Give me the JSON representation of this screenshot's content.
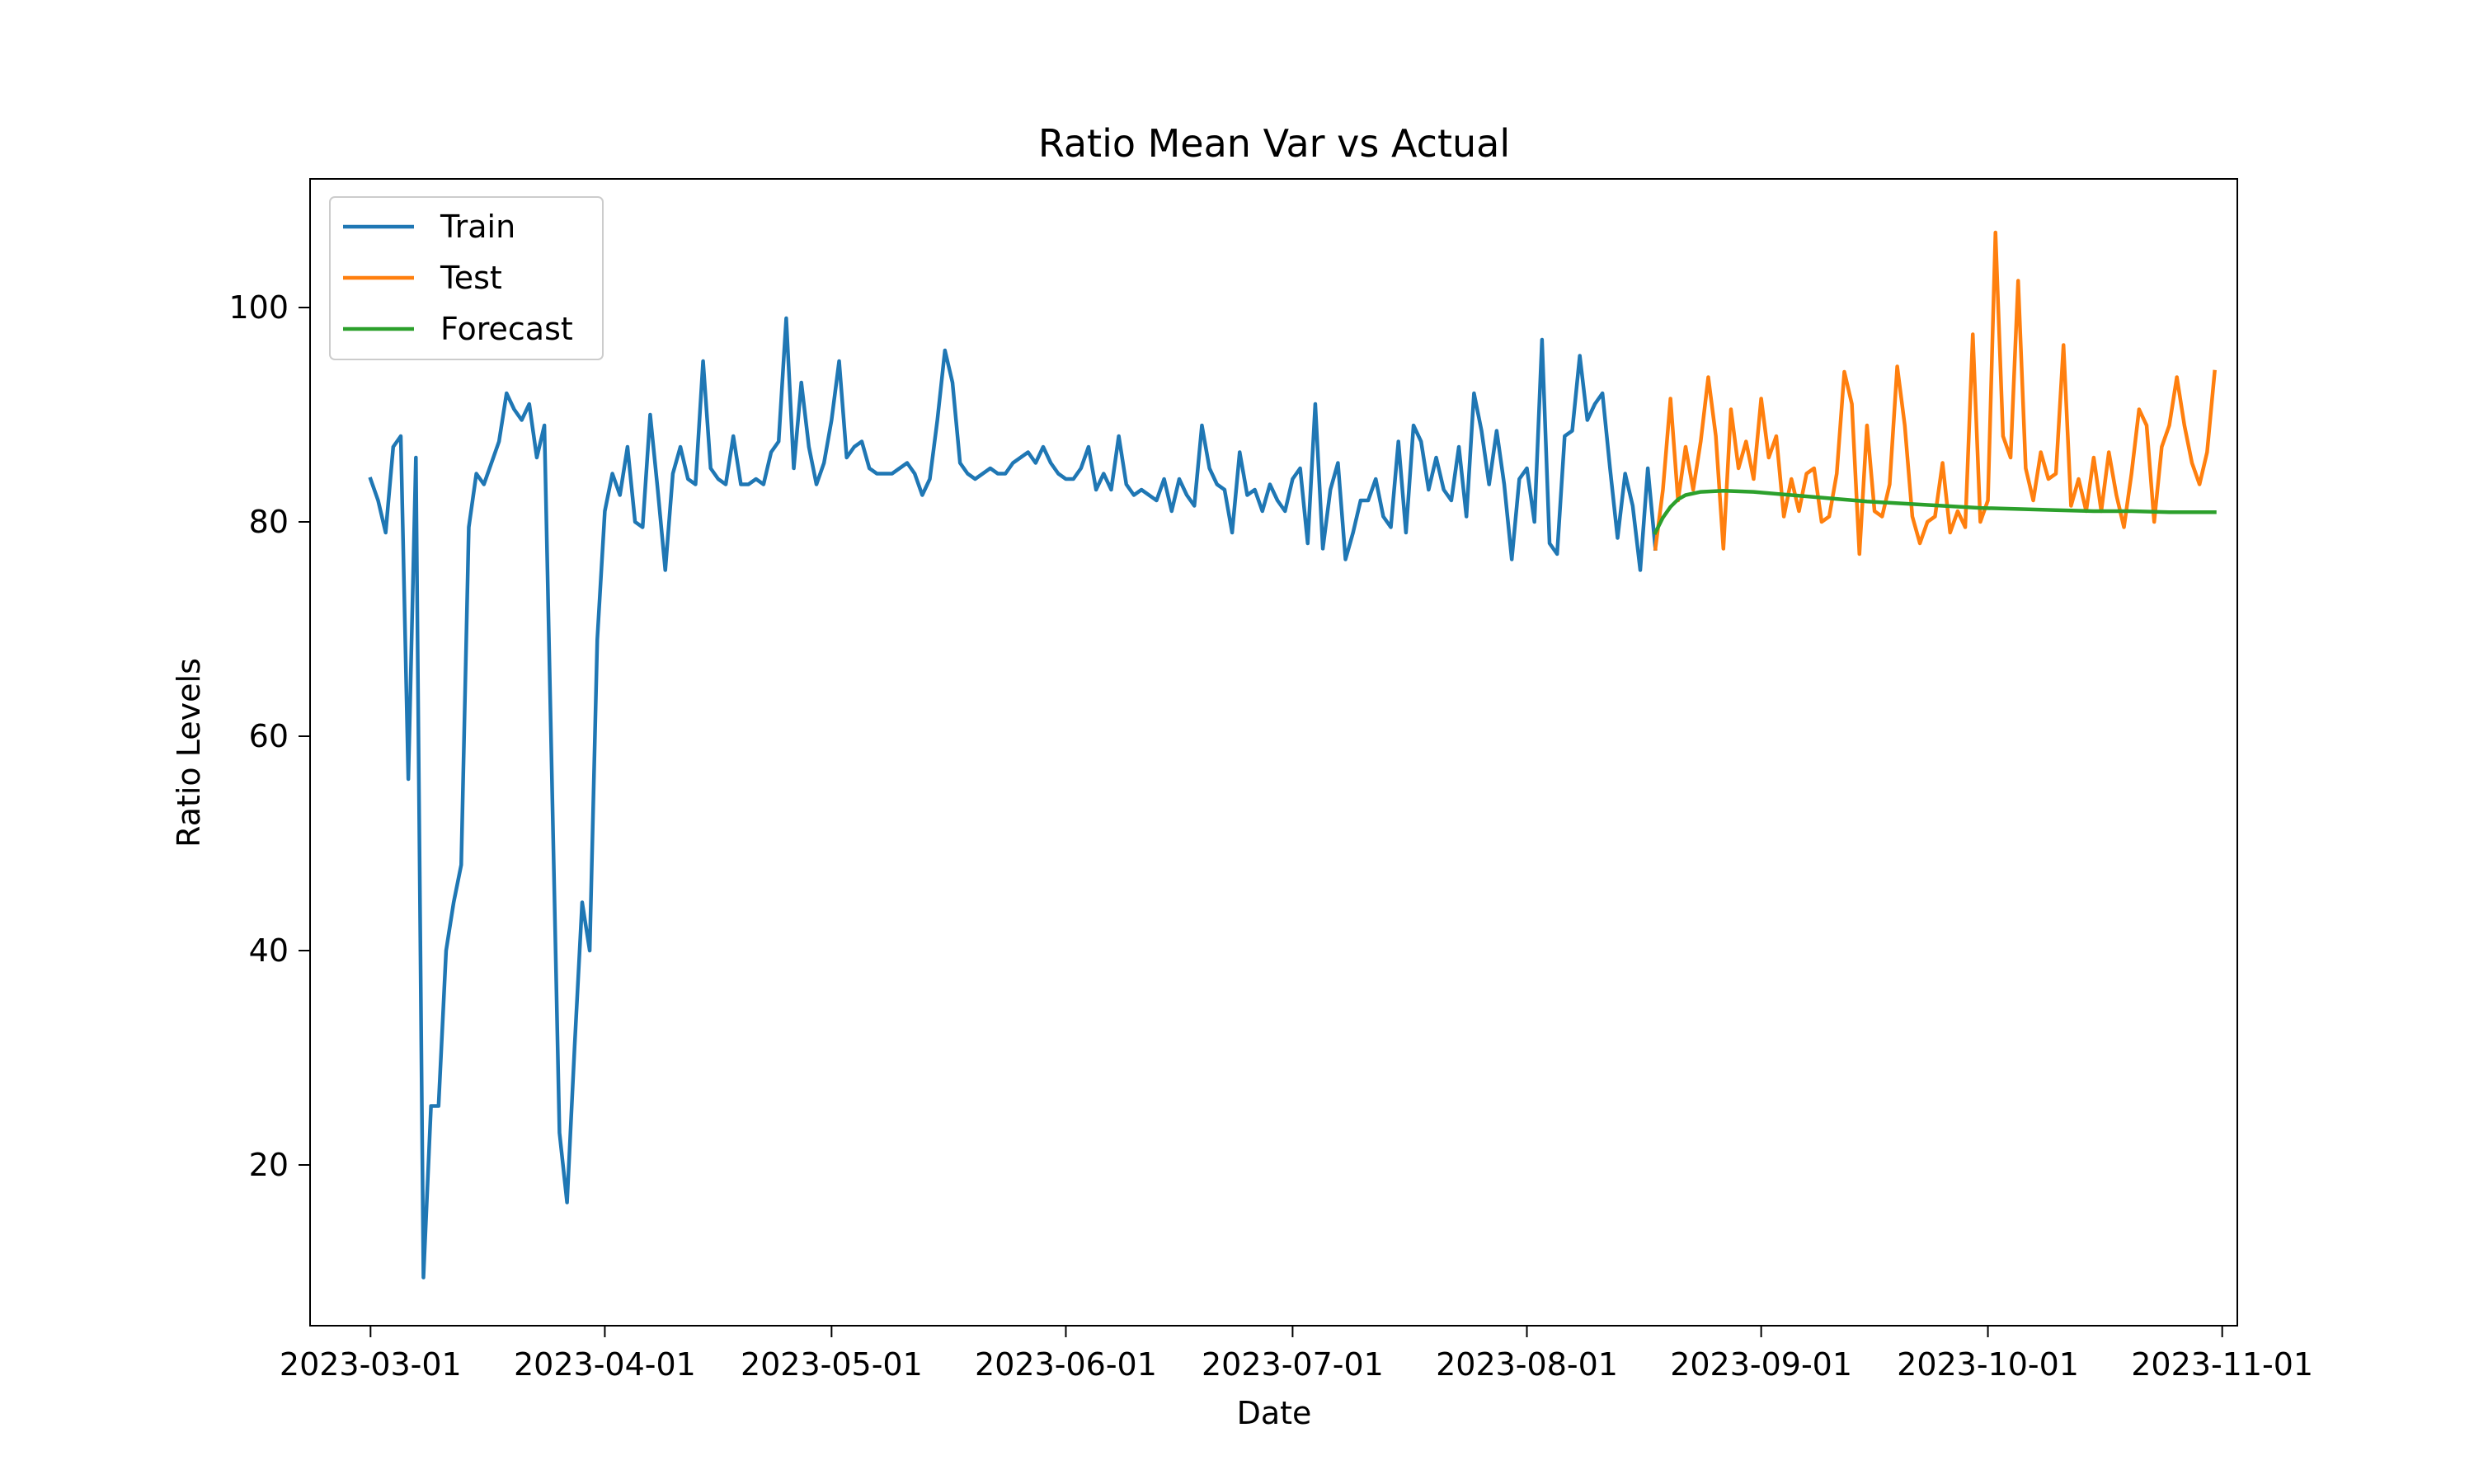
{
  "chart_data": {
    "type": "line",
    "title": "Ratio Mean Var vs Actual",
    "xlabel": "Date",
    "ylabel": "Ratio Levels",
    "x_axis_type": "date",
    "xlim": [
      "2023-02-21",
      "2023-11-03"
    ],
    "ylim": [
      5,
      112
    ],
    "x_ticks": [
      "2023-03-01",
      "2023-04-01",
      "2023-05-01",
      "2023-06-01",
      "2023-07-01",
      "2023-08-01",
      "2023-09-01",
      "2023-10-01",
      "2023-11-01"
    ],
    "y_ticks": [
      20,
      40,
      60,
      80,
      100
    ],
    "grid": false,
    "legend_position": "upper-left",
    "series": [
      {
        "name": "Train",
        "color": "#1f77b4",
        "points": [
          [
            "2023-03-01",
            84.0
          ],
          [
            "2023-03-02",
            82.0
          ],
          [
            "2023-03-03",
            79.0
          ],
          [
            "2023-03-04",
            87.0
          ],
          [
            "2023-03-05",
            88.0
          ],
          [
            "2023-03-06",
            56.0
          ],
          [
            "2023-03-07",
            86.0
          ],
          [
            "2023-03-08",
            9.5
          ],
          [
            "2023-03-09",
            25.5
          ],
          [
            "2023-03-10",
            25.5
          ],
          [
            "2023-03-11",
            40.0
          ],
          [
            "2023-03-12",
            44.5
          ],
          [
            "2023-03-13",
            48.0
          ],
          [
            "2023-03-14",
            79.5
          ],
          [
            "2023-03-15",
            84.5
          ],
          [
            "2023-03-16",
            83.5
          ],
          [
            "2023-03-17",
            85.5
          ],
          [
            "2023-03-18",
            87.5
          ],
          [
            "2023-03-19",
            92.0
          ],
          [
            "2023-03-20",
            90.5
          ],
          [
            "2023-03-21",
            89.5
          ],
          [
            "2023-03-22",
            91.0
          ],
          [
            "2023-03-23",
            86.0
          ],
          [
            "2023-03-24",
            89.0
          ],
          [
            "2023-03-25",
            56.0
          ],
          [
            "2023-03-26",
            23.0
          ],
          [
            "2023-03-27",
            16.5
          ],
          [
            "2023-03-28",
            31.0
          ],
          [
            "2023-03-29",
            44.5
          ],
          [
            "2023-03-30",
            40.0
          ],
          [
            "2023-03-31",
            69.0
          ],
          [
            "2023-04-01",
            81.0
          ],
          [
            "2023-04-02",
            84.5
          ],
          [
            "2023-04-03",
            82.5
          ],
          [
            "2023-04-04",
            87.0
          ],
          [
            "2023-04-05",
            80.0
          ],
          [
            "2023-04-06",
            79.5
          ],
          [
            "2023-04-07",
            90.0
          ],
          [
            "2023-04-08",
            83.0
          ],
          [
            "2023-04-09",
            75.5
          ],
          [
            "2023-04-10",
            84.5
          ],
          [
            "2023-04-11",
            87.0
          ],
          [
            "2023-04-12",
            84.0
          ],
          [
            "2023-04-13",
            83.5
          ],
          [
            "2023-04-14",
            95.0
          ],
          [
            "2023-04-15",
            85.0
          ],
          [
            "2023-04-16",
            84.0
          ],
          [
            "2023-04-17",
            83.5
          ],
          [
            "2023-04-18",
            88.0
          ],
          [
            "2023-04-19",
            83.5
          ],
          [
            "2023-04-20",
            83.5
          ],
          [
            "2023-04-21",
            84.0
          ],
          [
            "2023-04-22",
            83.5
          ],
          [
            "2023-04-23",
            86.5
          ],
          [
            "2023-04-24",
            87.5
          ],
          [
            "2023-04-25",
            99.0
          ],
          [
            "2023-04-26",
            85.0
          ],
          [
            "2023-04-27",
            93.0
          ],
          [
            "2023-04-28",
            87.0
          ],
          [
            "2023-04-29",
            83.5
          ],
          [
            "2023-04-30",
            85.5
          ],
          [
            "2023-05-01",
            89.5
          ],
          [
            "2023-05-02",
            95.0
          ],
          [
            "2023-05-03",
            86.0
          ],
          [
            "2023-05-04",
            87.0
          ],
          [
            "2023-05-05",
            87.5
          ],
          [
            "2023-05-06",
            85.0
          ],
          [
            "2023-05-07",
            84.5
          ],
          [
            "2023-05-08",
            84.5
          ],
          [
            "2023-05-09",
            84.5
          ],
          [
            "2023-05-10",
            85.0
          ],
          [
            "2023-05-11",
            85.5
          ],
          [
            "2023-05-12",
            84.5
          ],
          [
            "2023-05-13",
            82.5
          ],
          [
            "2023-05-14",
            84.0
          ],
          [
            "2023-05-15",
            89.5
          ],
          [
            "2023-05-16",
            96.0
          ],
          [
            "2023-05-17",
            93.0
          ],
          [
            "2023-05-18",
            85.5
          ],
          [
            "2023-05-19",
            84.5
          ],
          [
            "2023-05-20",
            84.0
          ],
          [
            "2023-05-21",
            84.5
          ],
          [
            "2023-05-22",
            85.0
          ],
          [
            "2023-05-23",
            84.5
          ],
          [
            "2023-05-24",
            84.5
          ],
          [
            "2023-05-25",
            85.5
          ],
          [
            "2023-05-26",
            86.0
          ],
          [
            "2023-05-27",
            86.5
          ],
          [
            "2023-05-28",
            85.5
          ],
          [
            "2023-05-29",
            87.0
          ],
          [
            "2023-05-30",
            85.5
          ],
          [
            "2023-05-31",
            84.5
          ],
          [
            "2023-06-01",
            84.0
          ],
          [
            "2023-06-02",
            84.0
          ],
          [
            "2023-06-03",
            85.0
          ],
          [
            "2023-06-04",
            87.0
          ],
          [
            "2023-06-05",
            83.0
          ],
          [
            "2023-06-06",
            84.5
          ],
          [
            "2023-06-07",
            83.0
          ],
          [
            "2023-06-08",
            88.0
          ],
          [
            "2023-06-09",
            83.5
          ],
          [
            "2023-06-10",
            82.5
          ],
          [
            "2023-06-11",
            83.0
          ],
          [
            "2023-06-12",
            82.5
          ],
          [
            "2023-06-13",
            82.0
          ],
          [
            "2023-06-14",
            84.0
          ],
          [
            "2023-06-15",
            81.0
          ],
          [
            "2023-06-16",
            84.0
          ],
          [
            "2023-06-17",
            82.5
          ],
          [
            "2023-06-18",
            81.5
          ],
          [
            "2023-06-19",
            89.0
          ],
          [
            "2023-06-20",
            85.0
          ],
          [
            "2023-06-21",
            83.5
          ],
          [
            "2023-06-22",
            83.0
          ],
          [
            "2023-06-23",
            79.0
          ],
          [
            "2023-06-24",
            86.5
          ],
          [
            "2023-06-25",
            82.5
          ],
          [
            "2023-06-26",
            83.0
          ],
          [
            "2023-06-27",
            81.0
          ],
          [
            "2023-06-28",
            83.5
          ],
          [
            "2023-06-29",
            82.0
          ],
          [
            "2023-06-30",
            81.0
          ],
          [
            "2023-07-01",
            84.0
          ],
          [
            "2023-07-02",
            85.0
          ],
          [
            "2023-07-03",
            78.0
          ],
          [
            "2023-07-04",
            91.0
          ],
          [
            "2023-07-05",
            77.5
          ],
          [
            "2023-07-06",
            83.0
          ],
          [
            "2023-07-07",
            85.5
          ],
          [
            "2023-07-08",
            76.5
          ],
          [
            "2023-07-09",
            79.0
          ],
          [
            "2023-07-10",
            82.0
          ],
          [
            "2023-07-11",
            82.0
          ],
          [
            "2023-07-12",
            84.0
          ],
          [
            "2023-07-13",
            80.5
          ],
          [
            "2023-07-14",
            79.5
          ],
          [
            "2023-07-15",
            87.5
          ],
          [
            "2023-07-16",
            79.0
          ],
          [
            "2023-07-17",
            89.0
          ],
          [
            "2023-07-18",
            87.5
          ],
          [
            "2023-07-19",
            83.0
          ],
          [
            "2023-07-20",
            86.0
          ],
          [
            "2023-07-21",
            83.0
          ],
          [
            "2023-07-22",
            82.0
          ],
          [
            "2023-07-23",
            87.0
          ],
          [
            "2023-07-24",
            80.5
          ],
          [
            "2023-07-25",
            92.0
          ],
          [
            "2023-07-26",
            88.5
          ],
          [
            "2023-07-27",
            83.5
          ],
          [
            "2023-07-28",
            88.5
          ],
          [
            "2023-07-29",
            83.5
          ],
          [
            "2023-07-30",
            76.5
          ],
          [
            "2023-07-31",
            84.0
          ],
          [
            "2023-08-01",
            85.0
          ],
          [
            "2023-08-02",
            80.0
          ],
          [
            "2023-08-03",
            97.0
          ],
          [
            "2023-08-04",
            78.0
          ],
          [
            "2023-08-05",
            77.0
          ],
          [
            "2023-08-06",
            88.0
          ],
          [
            "2023-08-07",
            88.5
          ],
          [
            "2023-08-08",
            95.5
          ],
          [
            "2023-08-09",
            89.5
          ],
          [
            "2023-08-10",
            91.0
          ],
          [
            "2023-08-11",
            92.0
          ],
          [
            "2023-08-12",
            85.0
          ],
          [
            "2023-08-13",
            78.5
          ],
          [
            "2023-08-14",
            84.5
          ],
          [
            "2023-08-15",
            81.5
          ],
          [
            "2023-08-16",
            75.5
          ],
          [
            "2023-08-17",
            85.0
          ],
          [
            "2023-08-18",
            77.5
          ]
        ]
      },
      {
        "name": "Test",
        "color": "#ff7f0e",
        "points": [
          [
            "2023-08-18",
            77.5
          ],
          [
            "2023-08-19",
            83.0
          ],
          [
            "2023-08-20",
            91.5
          ],
          [
            "2023-08-21",
            82.0
          ],
          [
            "2023-08-22",
            87.0
          ],
          [
            "2023-08-23",
            83.0
          ],
          [
            "2023-08-24",
            87.5
          ],
          [
            "2023-08-25",
            93.5
          ],
          [
            "2023-08-26",
            88.0
          ],
          [
            "2023-08-27",
            77.5
          ],
          [
            "2023-08-28",
            90.5
          ],
          [
            "2023-08-29",
            85.0
          ],
          [
            "2023-08-30",
            87.5
          ],
          [
            "2023-08-31",
            84.0
          ],
          [
            "2023-09-01",
            91.5
          ],
          [
            "2023-09-02",
            86.0
          ],
          [
            "2023-09-03",
            88.0
          ],
          [
            "2023-09-04",
            80.5
          ],
          [
            "2023-09-05",
            84.0
          ],
          [
            "2023-09-06",
            81.0
          ],
          [
            "2023-09-07",
            84.5
          ],
          [
            "2023-09-08",
            85.0
          ],
          [
            "2023-09-09",
            80.0
          ],
          [
            "2023-09-10",
            80.5
          ],
          [
            "2023-09-11",
            84.5
          ],
          [
            "2023-09-12",
            94.0
          ],
          [
            "2023-09-13",
            91.0
          ],
          [
            "2023-09-14",
            77.0
          ],
          [
            "2023-09-15",
            89.0
          ],
          [
            "2023-09-16",
            81.0
          ],
          [
            "2023-09-17",
            80.5
          ],
          [
            "2023-09-18",
            83.5
          ],
          [
            "2023-09-19",
            94.5
          ],
          [
            "2023-09-20",
            89.0
          ],
          [
            "2023-09-21",
            80.5
          ],
          [
            "2023-09-22",
            78.0
          ],
          [
            "2023-09-23",
            80.0
          ],
          [
            "2023-09-24",
            80.5
          ],
          [
            "2023-09-25",
            85.5
          ],
          [
            "2023-09-26",
            79.0
          ],
          [
            "2023-09-27",
            81.0
          ],
          [
            "2023-09-28",
            79.5
          ],
          [
            "2023-09-29",
            97.5
          ],
          [
            "2023-09-30",
            80.0
          ],
          [
            "2023-10-01",
            82.0
          ],
          [
            "2023-10-02",
            107.0
          ],
          [
            "2023-10-03",
            88.0
          ],
          [
            "2023-10-04",
            86.0
          ],
          [
            "2023-10-05",
            102.5
          ],
          [
            "2023-10-06",
            85.0
          ],
          [
            "2023-10-07",
            82.0
          ],
          [
            "2023-10-08",
            86.5
          ],
          [
            "2023-10-09",
            84.0
          ],
          [
            "2023-10-10",
            84.5
          ],
          [
            "2023-10-11",
            96.5
          ],
          [
            "2023-10-12",
            81.5
          ],
          [
            "2023-10-13",
            84.0
          ],
          [
            "2023-10-14",
            81.0
          ],
          [
            "2023-10-15",
            86.0
          ],
          [
            "2023-10-16",
            81.0
          ],
          [
            "2023-10-17",
            86.5
          ],
          [
            "2023-10-18",
            82.5
          ],
          [
            "2023-10-19",
            79.5
          ],
          [
            "2023-10-20",
            84.5
          ],
          [
            "2023-10-21",
            90.5
          ],
          [
            "2023-10-22",
            89.0
          ],
          [
            "2023-10-23",
            80.0
          ],
          [
            "2023-10-24",
            87.0
          ],
          [
            "2023-10-25",
            89.0
          ],
          [
            "2023-10-26",
            93.5
          ],
          [
            "2023-10-27",
            89.0
          ],
          [
            "2023-10-28",
            85.5
          ],
          [
            "2023-10-29",
            83.5
          ],
          [
            "2023-10-30",
            86.5
          ],
          [
            "2023-10-31",
            94.0
          ]
        ]
      },
      {
        "name": "Forecast",
        "color": "#2ca02c",
        "points": [
          [
            "2023-08-18",
            79.0
          ],
          [
            "2023-08-19",
            80.4
          ],
          [
            "2023-08-20",
            81.4
          ],
          [
            "2023-08-21",
            82.1
          ],
          [
            "2023-08-22",
            82.5
          ],
          [
            "2023-08-24",
            82.8
          ],
          [
            "2023-08-27",
            82.9
          ],
          [
            "2023-08-31",
            82.8
          ],
          [
            "2023-09-05",
            82.5
          ],
          [
            "2023-09-10",
            82.2
          ],
          [
            "2023-09-15",
            81.9
          ],
          [
            "2023-09-20",
            81.7
          ],
          [
            "2023-09-25",
            81.5
          ],
          [
            "2023-09-30",
            81.3
          ],
          [
            "2023-10-05",
            81.2
          ],
          [
            "2023-10-10",
            81.1
          ],
          [
            "2023-10-15",
            81.0
          ],
          [
            "2023-10-20",
            81.0
          ],
          [
            "2023-10-25",
            80.9
          ],
          [
            "2023-10-31",
            80.9
          ]
        ]
      }
    ]
  }
}
